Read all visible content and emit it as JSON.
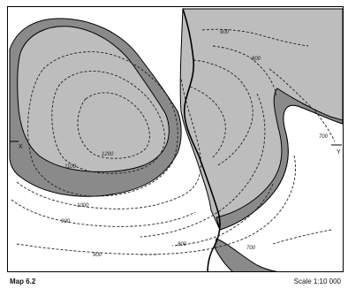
{
  "map": {
    "caption": "Map 6.2",
    "scale": "Scale 1:10 000",
    "points": {
      "x": "X",
      "y": "Y"
    },
    "contours": {
      "c900_top": "900",
      "c800_right": "800",
      "c700_right": "700",
      "c1200": "1200",
      "c1100": "1100",
      "c1000": "1000",
      "c900_left": "900",
      "c800_bottom": "800",
      "c700_bottom": "700",
      "c900_bottom": "900"
    },
    "colors": {
      "light_fill": "#bdbdbd",
      "dark_fill": "#8a8a8a",
      "background": "#ffffff",
      "line": "#000000"
    }
  }
}
